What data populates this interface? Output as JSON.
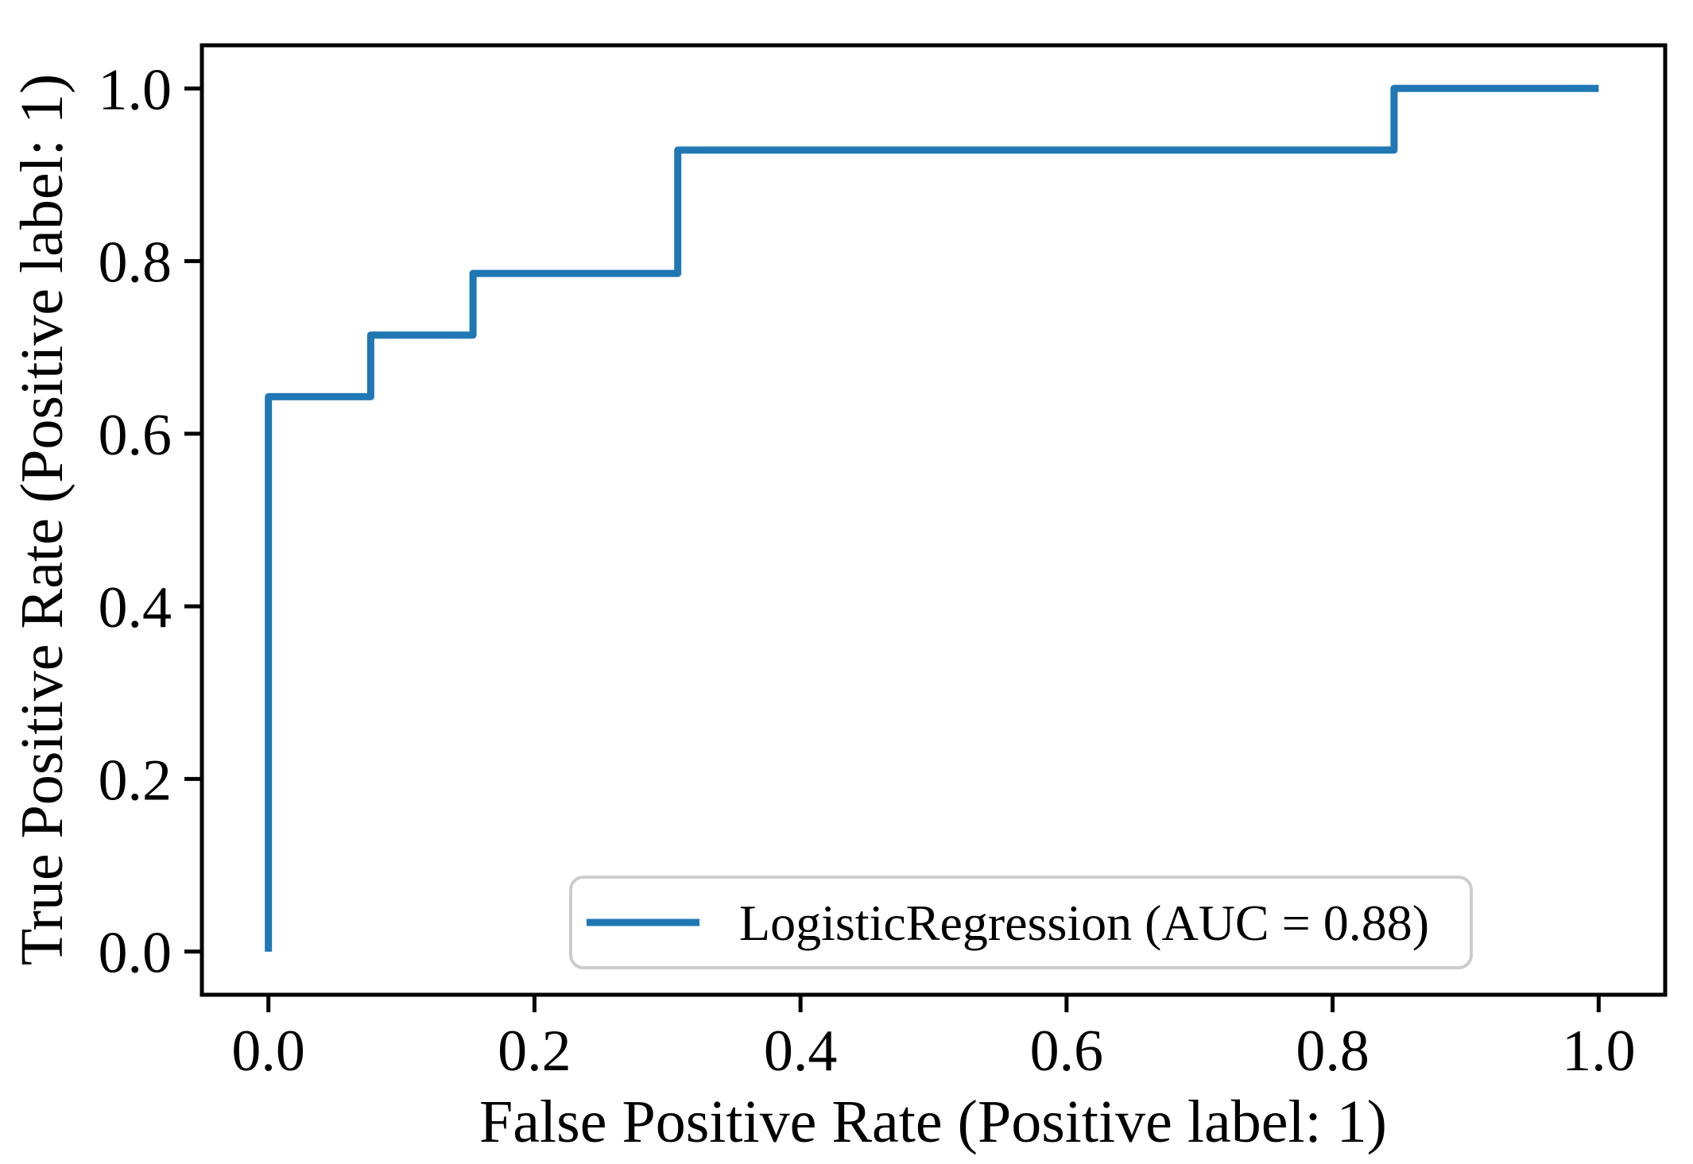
{
  "chart_data": {
    "type": "line",
    "subtype": "roc_step_curve",
    "title": "",
    "xlabel": "False Positive Rate (Positive label: 1)",
    "ylabel": "True Positive Rate (Positive label: 1)",
    "xlim": [
      -0.05,
      1.05
    ],
    "ylim": [
      -0.05,
      1.05
    ],
    "grid": false,
    "x_tick_values": [
      0.0,
      0.2,
      0.4,
      0.6,
      0.8,
      1.0
    ],
    "x_tick_labels": [
      "0.0",
      "0.2",
      "0.4",
      "0.6",
      "0.8",
      "1.0"
    ],
    "y_tick_values": [
      0.0,
      0.2,
      0.4,
      0.6,
      0.8,
      1.0
    ],
    "y_tick_labels": [
      "0.0",
      "0.2",
      "0.4",
      "0.6",
      "0.8",
      "1.0"
    ],
    "legend": {
      "position": "lower-right",
      "entries": [
        {
          "label": "LogisticRegression (AUC = 0.88)",
          "color": "#1f77b4",
          "line_style": "solid"
        }
      ]
    },
    "series": [
      {
        "name": "LogisticRegression",
        "auc": 0.88,
        "color": "#1f77b4",
        "x": [
          0.0,
          0.0,
          0.0769,
          0.0769,
          0.1538,
          0.1538,
          0.3077,
          0.3077,
          0.8462,
          0.8462,
          1.0
        ],
        "y": [
          0.0,
          0.6429,
          0.6429,
          0.7143,
          0.7143,
          0.7857,
          0.7857,
          0.9286,
          0.9286,
          1.0,
          1.0
        ]
      }
    ]
  },
  "colors": {
    "curve": "#1f77b4",
    "axis": "#000000",
    "legend_border": "#cccccc",
    "background": "#ffffff"
  }
}
